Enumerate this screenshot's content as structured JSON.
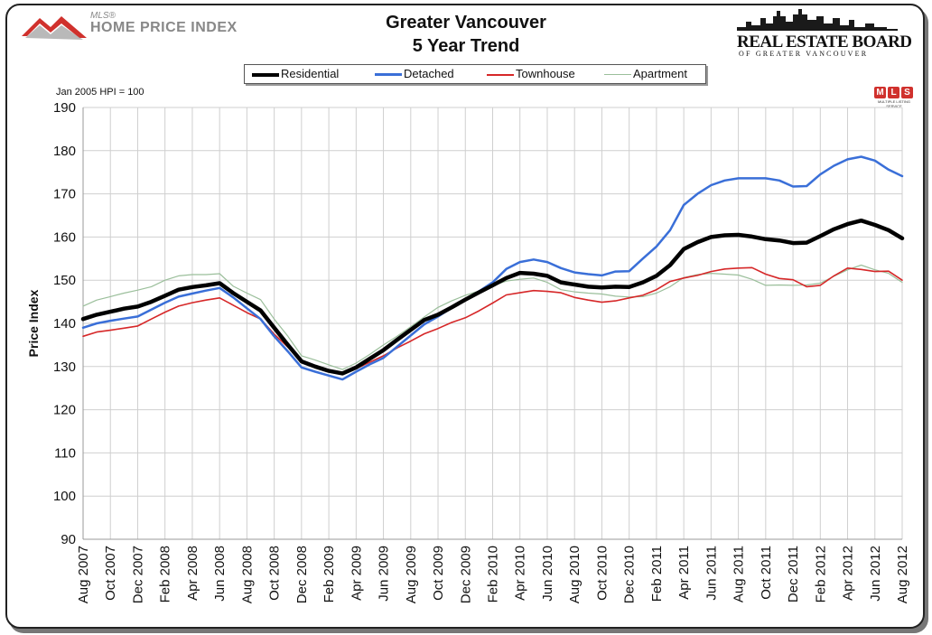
{
  "header": {
    "logo_mls": "MLS®",
    "logo_hpi": "HOME PRICE INDEX",
    "title_line1": "Greater Vancouver",
    "title_line2": "5 Year Trend",
    "board_line1": "REAL ESTATE BOARD",
    "board_line2": "OF GREATER VANCOUVER",
    "base_note": "Jan 2005 HPI = 100",
    "mls_letters": [
      "M",
      "L",
      "S"
    ],
    "mls_subtext": "MULTIPLE LISTING SERVICE"
  },
  "colors": {
    "residential": "#000000",
    "detached": "#3a6fd8",
    "townhouse": "#d62728",
    "apartment": "#9bbf9b",
    "grid": "#cfcfcf",
    "logo_red": "#d0312d"
  },
  "chart_data": {
    "type": "line",
    "title": "Greater Vancouver 5 Year Trend",
    "xlabel": "",
    "ylabel": "Price Index",
    "ylim": [
      90,
      190
    ],
    "yticks": [
      90,
      100,
      110,
      120,
      130,
      140,
      150,
      160,
      170,
      180,
      190
    ],
    "grid": true,
    "legend_position": "top-center",
    "x": [
      "Aug 2007",
      "Sep 2007",
      "Oct 2007",
      "Nov 2007",
      "Dec 2007",
      "Jan 2008",
      "Feb 2008",
      "Mar 2008",
      "Apr 2008",
      "May 2008",
      "Jun 2008",
      "Jul 2008",
      "Aug 2008",
      "Sep 2008",
      "Oct 2008",
      "Nov 2008",
      "Dec 2008",
      "Jan 2009",
      "Feb 2009",
      "Mar 2009",
      "Apr 2009",
      "May 2009",
      "Jun 2009",
      "Jul 2009",
      "Aug 2009",
      "Sep 2009",
      "Oct 2009",
      "Nov 2009",
      "Dec 2009",
      "Jan 2010",
      "Feb 2010",
      "Mar 2010",
      "Apr 2010",
      "May 2010",
      "Jun 2010",
      "Jul 2010",
      "Aug 2010",
      "Sep 2010",
      "Oct 2010",
      "Nov 2010",
      "Dec 2010",
      "Jan 2011",
      "Feb 2011",
      "Mar 2011",
      "Apr 2011",
      "May 2011",
      "Jun 2011",
      "Jul 2011",
      "Aug 2011",
      "Sep 2011",
      "Oct 2011",
      "Nov 2011",
      "Dec 2011",
      "Jan 2012",
      "Feb 2012",
      "Mar 2012",
      "Apr 2012",
      "May 2012",
      "Jun 2012",
      "Jul 2012",
      "Aug 2012"
    ],
    "tick_labels": [
      "Aug 2007",
      "Oct 2007",
      "Dec 2007",
      "Feb 2008",
      "Apr 2008",
      "Jun 2008",
      "Aug 2008",
      "Oct 2008",
      "Dec 2008",
      "Feb 2009",
      "Apr 2009",
      "Jun 2009",
      "Aug 2009",
      "Oct 2009",
      "Dec 2009",
      "Feb 2010",
      "Apr 2010",
      "Jun 2010",
      "Aug 2010",
      "Oct 2010",
      "Dec 2010",
      "Feb 2011",
      "Apr 2011",
      "Jun 2011",
      "Aug 2011",
      "Oct 2011",
      "Dec 2011",
      "Feb 2012",
      "Apr 2012",
      "Jun 2012",
      "Aug 2012"
    ],
    "series": [
      {
        "name": "Residential",
        "color": "#000000",
        "width": 4.5,
        "values": [
          141,
          142,
          142.7,
          143.4,
          143.9,
          145,
          146.4,
          147.8,
          148.4,
          148.8,
          149.3,
          147,
          145,
          143,
          139,
          135,
          131.2,
          130,
          129,
          128.4,
          129.8,
          131.8,
          133.8,
          136.2,
          138.5,
          140.8,
          142,
          143.7,
          145.5,
          147.2,
          148.8,
          150.5,
          151.7,
          151.5,
          151,
          149.5,
          149,
          148.5,
          148.3,
          148.5,
          148.4,
          149.5,
          151,
          153.5,
          157.2,
          158.8,
          160,
          160.4,
          160.5,
          160.1,
          159.5,
          159.2,
          158.6,
          158.7,
          160.2,
          161.8,
          163,
          163.8,
          162.8,
          161.6,
          159.7
        ]
      },
      {
        "name": "Detached",
        "color": "#3a6fd8",
        "width": 2.5,
        "values": [
          139,
          140,
          140.6,
          141.1,
          141.6,
          143.2,
          144.8,
          146.2,
          146.9,
          147.6,
          148.2,
          146,
          143.5,
          141,
          137,
          133.5,
          129.8,
          128.8,
          127.9,
          127,
          128.8,
          130.5,
          132,
          134.6,
          137.2,
          139.8,
          141.6,
          143.6,
          145.6,
          147.4,
          149.5,
          152.6,
          154.2,
          154.8,
          154.2,
          152.8,
          151.8,
          151.4,
          151.1,
          152,
          152.1,
          155,
          157.8,
          161.6,
          167.4,
          170,
          172,
          173.1,
          173.6,
          173.6,
          173.6,
          173.1,
          171.7,
          171.8,
          174.5,
          176.5,
          178,
          178.6,
          177.7,
          175.6,
          174.1
        ]
      },
      {
        "name": "Townhouse",
        "color": "#d62728",
        "width": 1.6,
        "values": [
          137,
          138,
          138.4,
          138.9,
          139.4,
          141,
          142.6,
          144,
          144.8,
          145.4,
          145.9,
          144.2,
          142.5,
          141,
          137.5,
          134.5,
          131.2,
          130.2,
          129.2,
          128.2,
          129.5,
          131,
          132.5,
          134.3,
          135.9,
          137.6,
          138.8,
          140.2,
          141.3,
          142.9,
          144.7,
          146.6,
          147.1,
          147.6,
          147.4,
          147.1,
          146,
          145.4,
          144.9,
          145.2,
          145.9,
          146.5,
          147.8,
          149.7,
          150.5,
          151.1,
          152,
          152.6,
          152.8,
          152.9,
          151.4,
          150.4,
          150.1,
          148.5,
          148.8,
          151,
          152.8,
          152.5,
          152,
          152.1,
          150
        ]
      },
      {
        "name": "Apartment",
        "color": "#9bbf9b",
        "width": 1.2,
        "values": [
          144,
          145.4,
          146.2,
          147,
          147.7,
          148.5,
          150,
          151,
          151.3,
          151.3,
          151.5,
          148.6,
          147,
          145.5,
          141,
          137,
          132.5,
          131.5,
          130.4,
          129.3,
          130.8,
          132.8,
          135,
          137,
          139.2,
          141.5,
          143.7,
          145.2,
          146.5,
          147.5,
          148.7,
          149.8,
          150.2,
          150.5,
          149.5,
          147.8,
          147.3,
          147,
          146.8,
          146.3,
          146.1,
          146.2,
          147,
          148.5,
          150.6,
          151.3,
          151.6,
          151.4,
          151.2,
          150.2,
          148.8,
          148.9,
          148.8,
          148.9,
          149.3,
          150.9,
          152.4,
          153.5,
          152.4,
          151.6,
          149.5
        ]
      }
    ]
  }
}
